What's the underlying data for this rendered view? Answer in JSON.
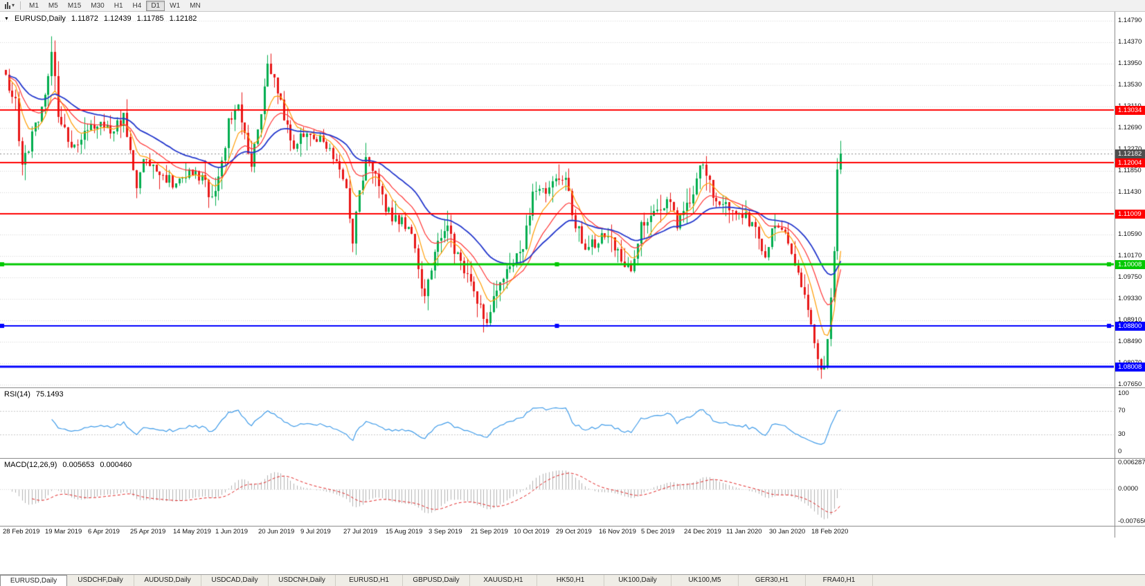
{
  "toolbar": {
    "timeframes": [
      {
        "label": "M1"
      },
      {
        "label": "M5"
      },
      {
        "label": "M15"
      },
      {
        "label": "M30"
      },
      {
        "label": "H1"
      },
      {
        "label": "H4"
      },
      {
        "label": "D1",
        "active": true
      },
      {
        "label": "W1"
      },
      {
        "label": "MN"
      }
    ]
  },
  "chart_data": {
    "type": "candlestick",
    "title": {
      "symbol_period": "EURUSD,Daily",
      "open": "1.11872",
      "high": "1.12439",
      "low": "1.11785",
      "close": "1.12182"
    },
    "y_axis": {
      "top": 1.14967,
      "bottom": 1.07596,
      "ticks": [
        "1.14790",
        "1.14370",
        "1.13950",
        "1.13530",
        "1.13110",
        "1.12690",
        "1.12270",
        "1.11850",
        "1.11430",
        "1.11010",
        "1.10590",
        "1.10170",
        "1.09750",
        "1.09330",
        "1.08910",
        "1.08490",
        "1.08070",
        "1.07650"
      ]
    },
    "x_axis": {
      "tick_step": 13,
      "labels": [
        "28 Feb 2019",
        "19 Mar 2019",
        "6 Apr 2019",
        "25 Apr 2019",
        "14 May 2019",
        "1 Jun 2019",
        "20 Jun 2019",
        "9 Jul 2019",
        "27 Jul 2019",
        "15 Aug 2019",
        "3 Sep 2019",
        "21 Sep 2019",
        "10 Oct 2019",
        "29 Oct 2019",
        "16 Nov 2019",
        "5 Dec 2019",
        "24 Dec 2019",
        "11 Jan 2020",
        "30 Jan 2020",
        "18 Feb 2020"
      ]
    },
    "candle_count": 256,
    "price_path_anchors": [
      [
        0,
        1.1368
      ],
      [
        3,
        1.132
      ],
      [
        5,
        1.1185
      ],
      [
        8,
        1.1255
      ],
      [
        12,
        1.133
      ],
      [
        14,
        1.1415
      ],
      [
        16,
        1.13
      ],
      [
        20,
        1.123
      ],
      [
        24,
        1.1255
      ],
      [
        28,
        1.128
      ],
      [
        32,
        1.126
      ],
      [
        36,
        1.129
      ],
      [
        40,
        1.1155
      ],
      [
        43,
        1.1215
      ],
      [
        47,
        1.118
      ],
      [
        52,
        1.116
      ],
      [
        56,
        1.1185
      ],
      [
        60,
        1.1165
      ],
      [
        63,
        1.1135
      ],
      [
        65,
        1.1175
      ],
      [
        68,
        1.1275
      ],
      [
        71,
        1.132
      ],
      [
        74,
        1.1225
      ],
      [
        75,
        1.1195
      ],
      [
        78,
        1.13
      ],
      [
        80,
        1.1395
      ],
      [
        82,
        1.137
      ],
      [
        85,
        1.1285
      ],
      [
        88,
        1.1225
      ],
      [
        92,
        1.1265
      ],
      [
        96,
        1.125
      ],
      [
        100,
        1.121
      ],
      [
        104,
        1.115
      ],
      [
        106,
        1.1045
      ],
      [
        108,
        1.1145
      ],
      [
        110,
        1.1205
      ],
      [
        113,
        1.1185
      ],
      [
        116,
        1.1105
      ],
      [
        120,
        1.109
      ],
      [
        123,
        1.1075
      ],
      [
        126,
        1.0995
      ],
      [
        128,
        1.093
      ],
      [
        131,
        1.1035
      ],
      [
        135,
        1.107
      ],
      [
        139,
        1.0995
      ],
      [
        143,
        1.0945
      ],
      [
        147,
        1.0885
      ],
      [
        150,
        1.096
      ],
      [
        154,
        1.0985
      ],
      [
        158,
        1.104
      ],
      [
        161,
        1.1135
      ],
      [
        165,
        1.115
      ],
      [
        169,
        1.116
      ],
      [
        171,
        1.117
      ],
      [
        174,
        1.1075
      ],
      [
        178,
        1.103
      ],
      [
        183,
        1.1065
      ],
      [
        188,
        1.1015
      ],
      [
        191,
        1.0995
      ],
      [
        194,
        1.108
      ],
      [
        198,
        1.1105
      ],
      [
        202,
        1.1125
      ],
      [
        205,
        1.1085
      ],
      [
        209,
        1.112
      ],
      [
        212,
        1.1205
      ],
      [
        214,
        1.1175
      ],
      [
        217,
        1.1125
      ],
      [
        221,
        1.1115
      ],
      [
        225,
        1.1095
      ],
      [
        229,
        1.108
      ],
      [
        232,
        1.1015
      ],
      [
        235,
        1.108
      ],
      [
        238,
        1.1055
      ],
      [
        242,
        1.0985
      ],
      [
        245,
        1.092
      ],
      [
        247,
        1.0845
      ],
      [
        249,
        1.0792
      ],
      [
        250,
        1.0805
      ],
      [
        251,
        1.0855
      ],
      [
        252,
        1.0935
      ],
      [
        253,
        1.1025
      ],
      [
        254,
        1.1187
      ],
      [
        255,
        1.1218
      ]
    ],
    "overrides": {
      "5": {
        "l": 1.1176
      },
      "14": {
        "h": 1.1449
      },
      "106": {
        "l": 1.1026
      },
      "128": {
        "l": 1.0925
      },
      "147": {
        "l": 1.0879
      },
      "249": {
        "l": 1.0777
      },
      "255": {
        "o": 1.11872,
        "h": 1.12439,
        "l": 1.11785,
        "c": 1.12182
      }
    },
    "moving_averages": [
      {
        "period": 8,
        "color": "#ff9c00",
        "width": 1.2
      },
      {
        "period": 17,
        "color": "#ff3333",
        "width": 1.2
      },
      {
        "period": 34,
        "color": "#2236cc",
        "width": 1.8
      }
    ],
    "hlines": [
      {
        "price": 1.13034,
        "label": "1.13034",
        "color": "#ff0000",
        "width": 2
      },
      {
        "price": 1.12004,
        "label": "1.12004",
        "color": "#ff0000",
        "width": 2
      },
      {
        "price": 1.11009,
        "label": "1.11009",
        "color": "#ff0000",
        "width": 2
      },
      {
        "price": 1.10008,
        "label": "1.10008",
        "color": "#00c800",
        "width": 3,
        "handles": true
      },
      {
        "price": 1.088,
        "label": "1.08800",
        "color": "#0000ff",
        "width": 2,
        "handles": true
      },
      {
        "price": 1.08008,
        "label": "1.08008",
        "color": "#0000ff",
        "width": 3
      }
    ],
    "current_price": {
      "label": "1.12182",
      "price": 1.12182
    },
    "rsi": {
      "label": "RSI(14)",
      "value": "75.1493",
      "period": 14,
      "levels": [
        70,
        30
      ],
      "scale": [
        "100",
        "70",
        "30",
        "0"
      ]
    },
    "macd": {
      "label": "MACD(12,26,9)",
      "value_main": "0.005653",
      "value_signal": "0.000460",
      "fast": 12,
      "slow": 26,
      "signal": 9,
      "scale": [
        {
          "label": "0.006287",
          "v": 0.006287
        },
        {
          "label": "0.0000",
          "v": 0
        },
        {
          "label": "-0.007650",
          "v": -0.00765
        }
      ]
    },
    "colors": {
      "grid": "#d4d4d4",
      "bull": "#00ad4e",
      "bear": "#e81717",
      "rsi_line": "#3d9ae8",
      "rsi_level": "#c8c8c8",
      "macd_hist": "#b0b0b0",
      "macd_signal": "#e02020",
      "current_price_line": "#888888",
      "current_price_bg": "#4f4f4f"
    }
  },
  "tabs": [
    {
      "label": "EURUSD,Daily",
      "active": true
    },
    {
      "label": "USDCHF,Daily"
    },
    {
      "label": "AUDUSD,Daily"
    },
    {
      "label": "USDCAD,Daily"
    },
    {
      "label": "USDCNH,Daily"
    },
    {
      "label": "EURUSD,H1"
    },
    {
      "label": "GBPUSD,Daily"
    },
    {
      "label": "XAUUSD,H1"
    },
    {
      "label": "HK50,H1"
    },
    {
      "label": "UK100,Daily"
    },
    {
      "label": "UK100,M5"
    },
    {
      "label": "GER30,H1"
    },
    {
      "label": "FRA40,H1"
    }
  ]
}
